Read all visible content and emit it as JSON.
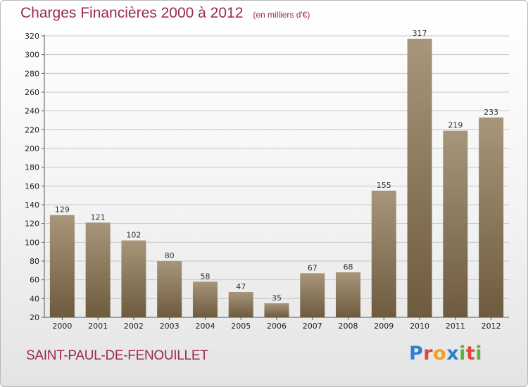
{
  "header": {
    "title": "Charges Financières 2000 à 2012",
    "subtitle": "(en milliers d'€)"
  },
  "footer": {
    "town": "SAINT-PAUL-DE-FENOUILLET",
    "logo_letters": [
      {
        "char": "P",
        "color": "#2f7fd3"
      },
      {
        "char": "r",
        "color": "#e0473a"
      },
      {
        "char": "o",
        "color": "#f1a21d"
      },
      {
        "char": "x",
        "color": "#2f7fd3"
      },
      {
        "char": "i",
        "color": "#59b340"
      },
      {
        "char": "t",
        "color": "#e0473a"
      },
      {
        "char": "i",
        "color": "#59b340"
      }
    ]
  },
  "chart_data": {
    "type": "bar",
    "title": "Charges Financières 2000 à 2012",
    "subtitle": "(en milliers d'€)",
    "categories": [
      "2000",
      "2001",
      "2002",
      "2003",
      "2004",
      "2005",
      "2006",
      "2007",
      "2008",
      "2009",
      "2010",
      "2011",
      "2012"
    ],
    "values": [
      129,
      121,
      102,
      80,
      58,
      47,
      35,
      67,
      68,
      155,
      317,
      219,
      233
    ],
    "ylim": [
      20,
      320
    ],
    "yticks": [
      20,
      40,
      60,
      80,
      100,
      120,
      140,
      160,
      180,
      200,
      220,
      240,
      260,
      280,
      300,
      320
    ],
    "grid": true,
    "bar_color_top": "#a8967a",
    "bar_color_bottom": "#6e5b3e"
  }
}
